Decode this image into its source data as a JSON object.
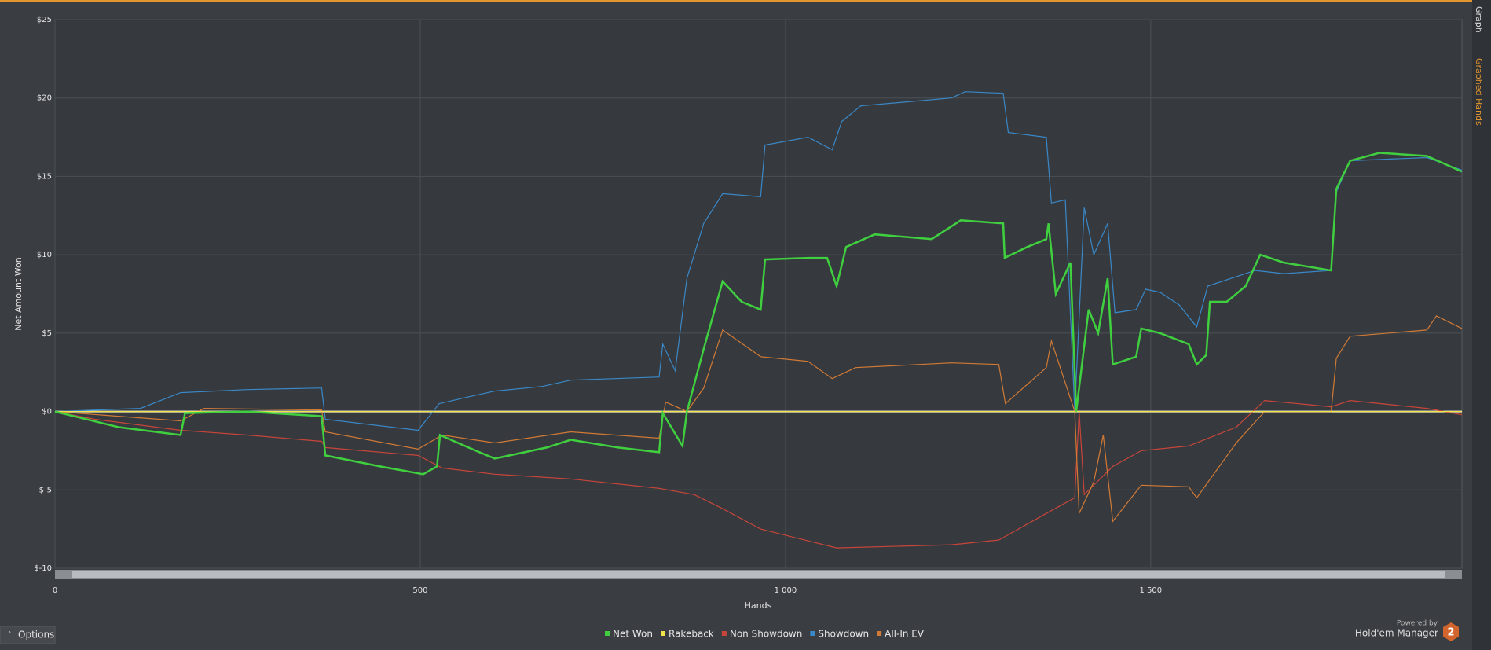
{
  "chart_data": {
    "type": "line",
    "y_label": "Net Amount Won",
    "x_label": "Hands",
    "xlim": [
      0,
      1926
    ],
    "xticks": [
      0,
      500,
      {
        "value": 1000,
        "label": "1 000"
      },
      {
        "value": 1500,
        "label": "1 500"
      }
    ],
    "ylim": [
      -10,
      25
    ],
    "yticks": [
      {
        "value": -10,
        "label": "$-10"
      },
      {
        "value": -5,
        "label": "$-5"
      },
      {
        "value": 0,
        "label": "$0"
      },
      {
        "value": 5,
        "label": "$5"
      },
      {
        "value": 10,
        "label": "$10"
      },
      {
        "value": 15,
        "label": "$15"
      },
      {
        "value": 20,
        "label": "$20"
      },
      {
        "value": 25,
        "label": "$25"
      }
    ],
    "grid": true,
    "series": [
      {
        "name": "Net Won",
        "color": "#3fcf3f",
        "x": [
          0,
          87,
          172,
          178,
          263,
          365,
          370,
          445,
          504,
          523,
          527,
          576,
          602,
          673,
          706,
          771,
          827,
          832,
          859,
          865,
          888,
          914,
          940,
          966,
          972,
          1031,
          1057,
          1070,
          1083,
          1122,
          1200,
          1240,
          1298,
          1300,
          1331,
          1357,
          1360,
          1370,
          1390,
          1398,
          1415,
          1428,
          1441,
          1448,
          1480,
          1487,
          1513,
          1552,
          1563,
          1576,
          1581,
          1604,
          1630,
          1650,
          1682,
          1747,
          1754,
          1773,
          1813,
          1878,
          1926
        ],
        "values": [
          0,
          -1,
          -1.5,
          -0.1,
          0,
          -0.3,
          -2.8,
          -3.5,
          -4,
          -3.5,
          -1.5,
          -2.5,
          -3,
          -2.3,
          -1.8,
          -2.3,
          -2.6,
          -0.1,
          -2.2,
          0,
          4,
          8.3,
          7,
          6.5,
          9.7,
          9.8,
          9.8,
          8,
          10.5,
          11.3,
          11,
          12.2,
          12,
          9.8,
          10.5,
          11,
          12,
          7.5,
          9.5,
          0,
          6.5,
          5,
          8.5,
          3,
          3.5,
          5.3,
          5,
          4.3,
          3,
          3.6,
          7,
          7,
          8,
          10,
          9.5,
          9,
          14.2,
          16,
          16.5,
          16.3,
          15.3
        ]
      },
      {
        "name": "Rakeback",
        "color": "#f0e44a",
        "x": [
          0,
          1926
        ],
        "values": [
          0,
          0
        ]
      },
      {
        "name": "Non Showdown",
        "color": "#c9453a",
        "x": [
          0,
          55,
          172,
          263,
          365,
          370,
          497,
          530,
          602,
          706,
          827,
          875,
          914,
          966,
          1070,
          1227,
          1292,
          1357,
          1396,
          1402,
          1409,
          1448,
          1487,
          1552,
          1617,
          1656,
          1747,
          1773,
          1878,
          1926
        ],
        "values": [
          0,
          -0.5,
          -1.2,
          -1.5,
          -1.9,
          -2.3,
          -2.8,
          -3.6,
          -4,
          -4.3,
          -4.9,
          -5.3,
          -6.2,
          -7.5,
          -8.7,
          -8.5,
          -8.2,
          -6.5,
          -5.5,
          0,
          -5.3,
          -3.5,
          -2.5,
          -2.2,
          -1,
          0.7,
          0.3,
          0.7,
          0.2,
          -0.2
        ]
      },
      {
        "name": "Showdown",
        "color": "#3a88c8",
        "x": [
          0,
          117,
          172,
          263,
          365,
          370,
          497,
          526,
          563,
          602,
          667,
          706,
          827,
          832,
          849,
          865,
          888,
          914,
          966,
          972,
          1031,
          1064,
          1077,
          1103,
          1227,
          1246,
          1298,
          1305,
          1357,
          1364,
          1383,
          1396,
          1409,
          1422,
          1441,
          1451,
          1480,
          1493,
          1513,
          1539,
          1563,
          1578,
          1643,
          1682,
          1747,
          1754,
          1773,
          1878,
          1926
        ],
        "values": [
          0,
          0.2,
          1.2,
          1.4,
          1.5,
          -0.5,
          -1.2,
          0.5,
          0.9,
          1.3,
          1.6,
          2,
          2.2,
          4.3,
          2.6,
          8.5,
          12,
          13.9,
          13.7,
          17,
          17.5,
          16.7,
          18.5,
          19.5,
          20,
          20.4,
          20.3,
          17.8,
          17.5,
          13.3,
          13.5,
          0,
          13,
          10,
          12,
          6.3,
          6.5,
          7.8,
          7.6,
          6.8,
          5.4,
          8,
          9,
          8.8,
          9,
          14,
          16,
          16.2,
          15.4
        ]
      },
      {
        "name": "All-In EV",
        "color": "#d27a35",
        "x": [
          0,
          172,
          204,
          365,
          370,
          497,
          530,
          602,
          706,
          827,
          836,
          865,
          888,
          914,
          966,
          1031,
          1064,
          1096,
          1227,
          1292,
          1301,
          1357,
          1364,
          1396,
          1402,
          1422,
          1435,
          1448,
          1487,
          1552,
          1563,
          1617,
          1656,
          1747,
          1754,
          1773,
          1878,
          1891,
          1926
        ],
        "values": [
          0,
          -0.6,
          0.2,
          0.1,
          -1.3,
          -2.4,
          -1.5,
          -2,
          -1.3,
          -1.7,
          0.6,
          0,
          1.5,
          5.2,
          3.5,
          3.2,
          2.1,
          2.8,
          3.1,
          3,
          0.5,
          2.8,
          4.5,
          0,
          -6.5,
          -4.5,
          -1.5,
          -7,
          -4.7,
          -4.8,
          -5.5,
          -2,
          0,
          0,
          3.4,
          4.8,
          5.2,
          6.1,
          5.3
        ]
      }
    ]
  },
  "tabs": [
    "Graph",
    "Graphed Hands"
  ],
  "options_button": "Options",
  "branding": {
    "powered_by": "Powered by",
    "product": "Hold'em Manager",
    "logo": "2"
  }
}
